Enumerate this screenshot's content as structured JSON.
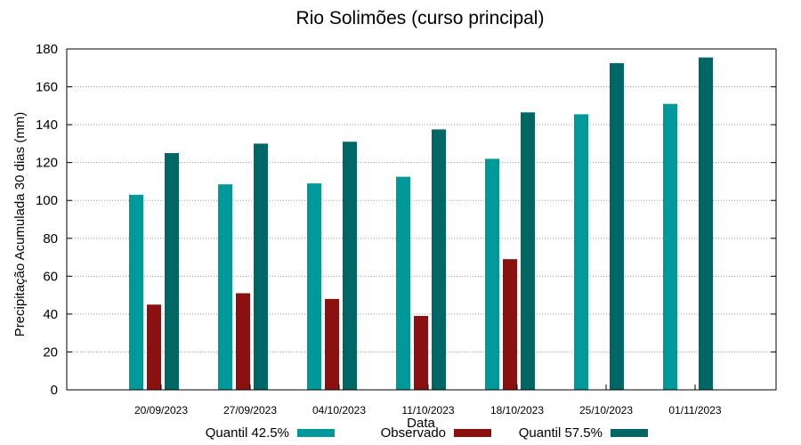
{
  "chart_data": {
    "type": "bar",
    "title": "Rio Solimões (curso principal)",
    "xlabel": "Data",
    "ylabel": "Precipitação Acumulada 30 dias (mm)",
    "ylim": [
      0,
      180
    ],
    "yticks": [
      0,
      20,
      40,
      60,
      80,
      100,
      120,
      140,
      160,
      180
    ],
    "grid": "horizontal, dotted",
    "legend_position": "bottom",
    "categories": [
      "20/09/2023",
      "27/09/2023",
      "04/10/2023",
      "11/10/2023",
      "18/10/2023",
      "25/10/2023",
      "01/11/2023"
    ],
    "series": [
      {
        "name": "Quantil 42.5%",
        "color": "#009999",
        "values": [
          103,
          108.5,
          109,
          112.5,
          122,
          145.5,
          151
        ]
      },
      {
        "name": "Observado",
        "color": "#8b1010",
        "values": [
          45,
          51,
          48,
          39,
          69,
          null,
          null
        ]
      },
      {
        "name": "Quantil 57.5%",
        "color": "#006666",
        "values": [
          125,
          130,
          131,
          137.5,
          146.5,
          172.5,
          175.5
        ]
      }
    ]
  }
}
